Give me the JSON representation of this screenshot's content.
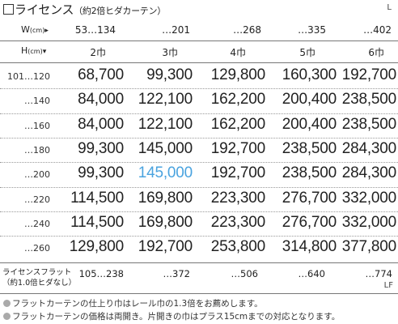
{
  "title": {
    "main": "ライセンス",
    "sub": "（約2倍ヒダカーテン）",
    "badge": "L"
  },
  "width_header": {
    "label": "W",
    "unit": "(cm)",
    "arrow": "▸",
    "values": [
      "53…134",
      "…201",
      "…268",
      "…335",
      "…402"
    ]
  },
  "height_header": {
    "label": "H",
    "unit": "(cm)",
    "arrow": "▾",
    "widths": [
      "2巾",
      "3巾",
      "4巾",
      "5巾",
      "6巾"
    ]
  },
  "rows": [
    {
      "label": "101…120",
      "values": [
        "68,700",
        "99,300",
        "129,800",
        "160,300",
        "192,700"
      ]
    },
    {
      "label": "…140",
      "values": [
        "84,000",
        "122,100",
        "162,200",
        "200,400",
        "238,500"
      ]
    },
    {
      "label": "…160",
      "values": [
        "84,000",
        "122,100",
        "162,200",
        "200,400",
        "238,500"
      ]
    },
    {
      "label": "…180",
      "values": [
        "99,300",
        "145,000",
        "192,700",
        "238,500",
        "284,300"
      ]
    },
    {
      "label": "…200",
      "values": [
        "99,300",
        "145,000",
        "192,700",
        "238,500",
        "284,300"
      ],
      "highlight_index": 1
    },
    {
      "label": "…220",
      "values": [
        "114,500",
        "169,800",
        "223,300",
        "276,700",
        "332,000"
      ]
    },
    {
      "label": "…240",
      "values": [
        "114,500",
        "169,800",
        "223,300",
        "276,700",
        "332,000"
      ]
    },
    {
      "label": "…260",
      "values": [
        "129,800",
        "192,700",
        "253,800",
        "314,800",
        "377,800"
      ]
    }
  ],
  "flat": {
    "label_line1": "ライセンスフラット",
    "label_line2": "（約1.0倍ヒダなし）",
    "values": [
      "105…238",
      "…372",
      "…506",
      "…640",
      "…774"
    ],
    "badge": "LF"
  },
  "notes": [
    "フラットカーテンの仕上り巾はレール巾の1.3倍をお薦めします。",
    "フラットカーテンの価格は両開き。片開きの巾はプラス15cmまでの対応となります。"
  ],
  "colors": {
    "highlight": "#4aa3df",
    "note_dot": "#aaaaaa",
    "rule": "#777777"
  }
}
